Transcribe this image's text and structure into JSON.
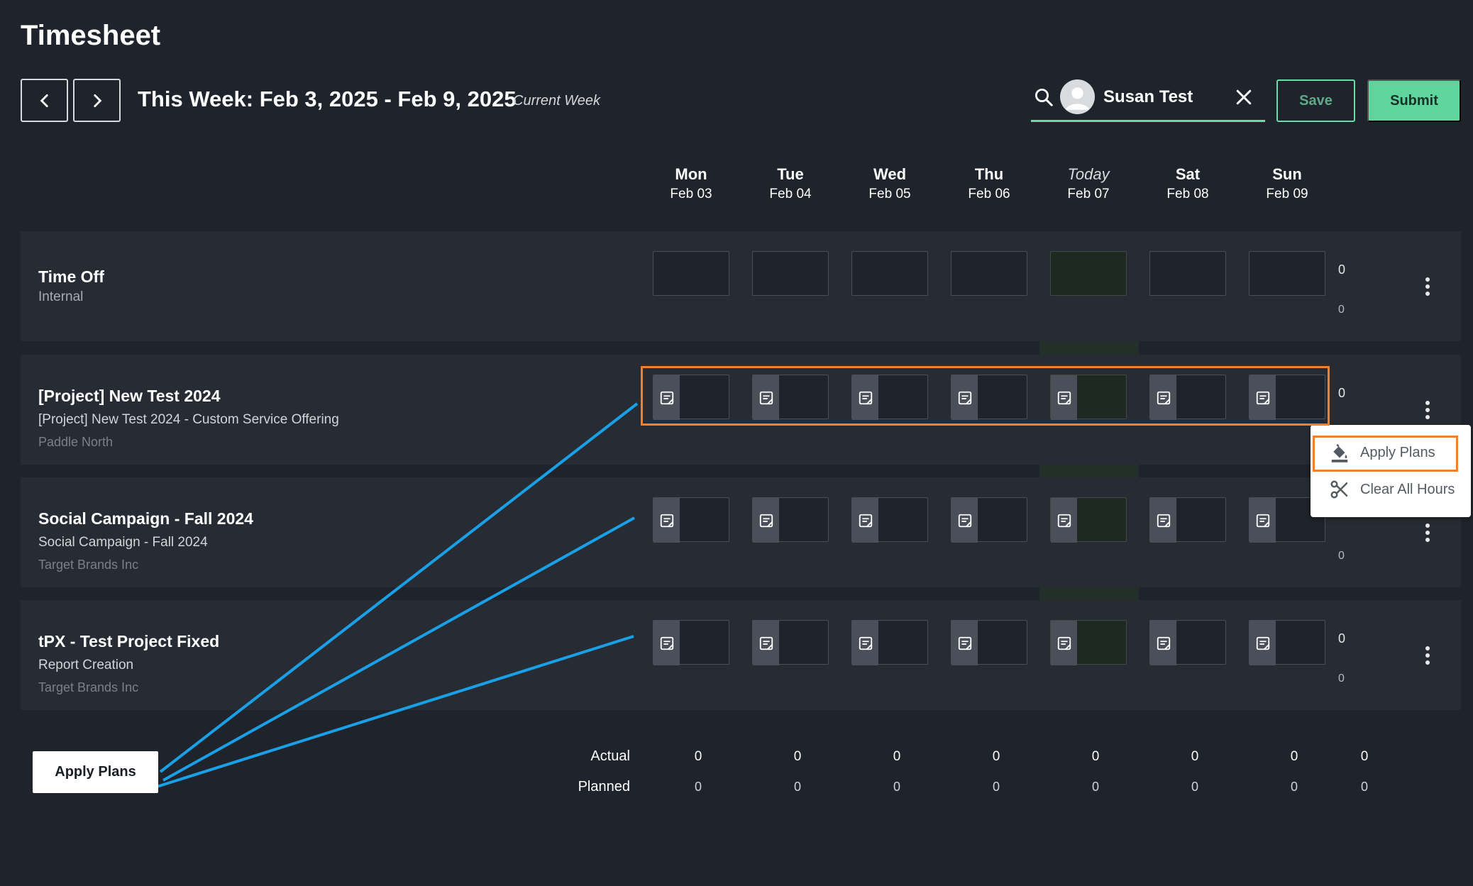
{
  "page": {
    "title": "Timesheet"
  },
  "week": {
    "range_label": "This Week: Feb 3, 2025 - Feb 9, 2025",
    "current_label": "Current Week"
  },
  "user": {
    "name": "Susan Test"
  },
  "actions": {
    "save_label": "Save",
    "submit_label": "Submit"
  },
  "days": [
    {
      "name": "Mon",
      "date": "Feb 03",
      "today": false
    },
    {
      "name": "Tue",
      "date": "Feb 04",
      "today": false
    },
    {
      "name": "Wed",
      "date": "Feb 05",
      "today": false
    },
    {
      "name": "Thu",
      "date": "Feb 06",
      "today": false
    },
    {
      "name": "Today",
      "date": "Feb 07",
      "today": true
    },
    {
      "name": "Sat",
      "date": "Feb 08",
      "today": false
    },
    {
      "name": "Sun",
      "date": "Feb 09",
      "today": false
    }
  ],
  "rows": [
    {
      "title": "Time Off",
      "subtitle": "",
      "client": "Internal",
      "total_actual": "0",
      "total_planned": "0"
    },
    {
      "title": "[Project] New Test 2024",
      "subtitle": "[Project] New Test 2024 - Custom Service Offering",
      "client": "Paddle North",
      "total_actual": "0",
      "total_planned": ""
    },
    {
      "title": "Social Campaign - Fall 2024",
      "subtitle": "Social Campaign - Fall 2024",
      "client": "Target Brands Inc",
      "total_actual": "",
      "total_planned": "0"
    },
    {
      "title": "tPX - Test Project Fixed",
      "subtitle": "Report Creation",
      "client": "Target Brands Inc",
      "total_actual": "0",
      "total_planned": "0"
    }
  ],
  "menu": {
    "apply_plans": "Apply Plans",
    "clear_all_hours": "Clear All Hours"
  },
  "callout": {
    "label": "Apply Plans"
  },
  "footer": {
    "actual_label": "Actual",
    "planned_label": "Planned",
    "actual_values": [
      "0",
      "0",
      "0",
      "0",
      "0",
      "0",
      "0",
      "0"
    ],
    "planned_values": [
      "0",
      "0",
      "0",
      "0",
      "0",
      "0",
      "0",
      "0"
    ]
  },
  "colors": {
    "accent": "#5fd59d",
    "highlight": "#f0802b",
    "arrow": "#1aa0e6",
    "background": "#1f232b"
  }
}
